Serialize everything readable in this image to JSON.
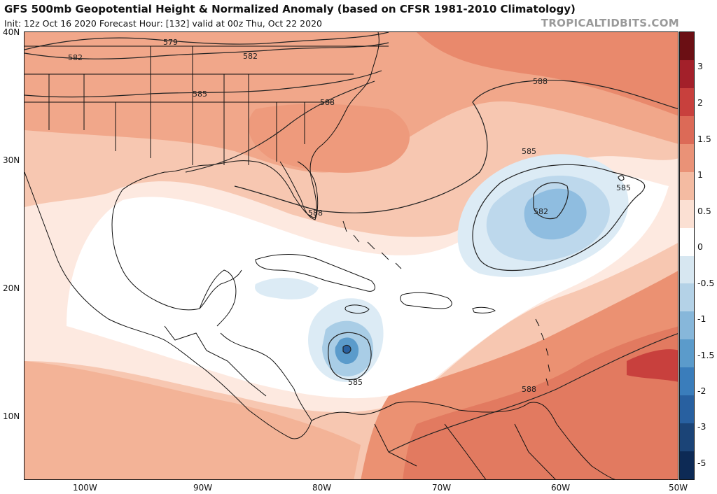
{
  "title": "GFS 500mb Geopotential Height & Normalized Anomaly (based on CFSR 1981-2010 Climatology)",
  "subtitle": "Init: 12z Oct 16 2020   Forecast Hour: [132]   valid at 00z Thu, Oct 22 2020",
  "watermark": "TROPICALTIDBITS.COM",
  "map": {
    "lat_labels": [
      "40N",
      "30N",
      "20N",
      "10N"
    ],
    "lon_labels": [
      "100W",
      "90W",
      "80W",
      "70W",
      "60W",
      "50W"
    ],
    "contour_labels": [
      {
        "id": "c579",
        "text": "579"
      },
      {
        "id": "c582a",
        "text": "582"
      },
      {
        "id": "c582b",
        "text": "582"
      },
      {
        "id": "c585a",
        "text": "585"
      },
      {
        "id": "c588a",
        "text": "588"
      },
      {
        "id": "c588b",
        "text": "588"
      },
      {
        "id": "c588c",
        "text": "588"
      },
      {
        "id": "c585b",
        "text": "585"
      },
      {
        "id": "c585c",
        "text": "585"
      },
      {
        "id": "c582c",
        "text": "582"
      },
      {
        "id": "c585d",
        "text": "585"
      },
      {
        "id": "c588d",
        "text": "588"
      }
    ]
  },
  "colorbar": {
    "labels": [
      "3",
      "2",
      "1.5",
      "1",
      "0.5",
      "0",
      "-0.5",
      "-1",
      "-1.5",
      "-2",
      "-3",
      "-5"
    ],
    "colors": [
      "#6b0f14",
      "#a3202a",
      "#c8403d",
      "#dc6a57",
      "#ea9277",
      "#f4bba2",
      "#fbe0d3",
      "#ffffff",
      "#d7e7f1",
      "#b4d2e7",
      "#87b7da",
      "#5b9bcb",
      "#3a7dbb",
      "#2860a0",
      "#1b4477",
      "#0d2a55"
    ]
  },
  "colors": {
    "warm_light": "#fbe1d4",
    "warm_mid": "#f4b79d",
    "warm_strong": "#eb9173",
    "warm_deep": "#df7059",
    "cool_light": "#dbe9f3",
    "cool_mid": "#a9cde6",
    "cool_deep": "#5b9bcb",
    "land_line": "#111111"
  }
}
